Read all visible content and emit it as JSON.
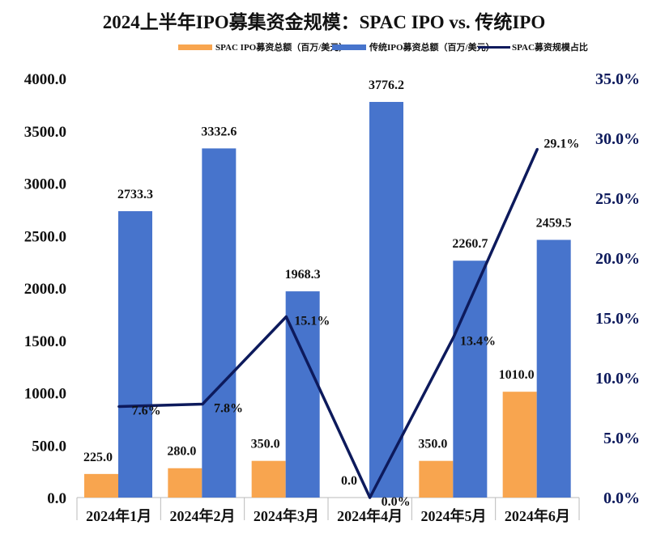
{
  "chart_data": {
    "type": "bar",
    "title": "2024上半年IPO募集资金规模：SPAC IPO vs. 传统IPO",
    "categories": [
      "2024年1月",
      "2024年2月",
      "2024年3月",
      "2024年4月",
      "2024年5月",
      "2024年6月"
    ],
    "series": [
      {
        "name": "SPAC IPO募资总额（百万/美元）",
        "type": "bar",
        "axis": "left",
        "color": "#F8A54F",
        "values": [
          225.0,
          280.0,
          350.0,
          0.0,
          350.0,
          1010.0
        ],
        "labels": [
          "225.0",
          "280.0",
          "350.0",
          "0.0",
          "350.0",
          "1010.0"
        ]
      },
      {
        "name": "传统IPO募资总额（百万/美元）",
        "type": "bar",
        "axis": "left",
        "color": "#4774CC",
        "values": [
          2733.3,
          3332.6,
          1968.3,
          3776.2,
          2260.7,
          2459.5
        ],
        "labels": [
          "2733.3",
          "3332.6",
          "1968.3",
          "3776.2",
          "2260.7",
          "2459.5"
        ]
      },
      {
        "name": "SPAC募资规模占比",
        "type": "line",
        "axis": "right",
        "color": "#0D1A5C",
        "values": [
          7.6,
          7.8,
          15.1,
          0.0,
          13.4,
          29.1
        ],
        "labels": [
          "7.6%",
          "7.8%",
          "15.1%",
          "0.0%",
          "13.4%",
          "29.1%"
        ]
      }
    ],
    "ylim": [
      0,
      4000
    ],
    "yticks": [
      "0.0",
      "500.0",
      "1000.0",
      "1500.0",
      "2000.0",
      "2500.0",
      "3000.0",
      "3500.0",
      "4000.0"
    ],
    "y2lim": [
      0,
      35
    ],
    "y2ticks": [
      "0.0%",
      "5.0%",
      "10.0%",
      "15.0%",
      "20.0%",
      "25.0%",
      "30.0%",
      "35.0%"
    ],
    "right_axis_color": "#0D1A5C",
    "legend": "top",
    "grid": false
  }
}
